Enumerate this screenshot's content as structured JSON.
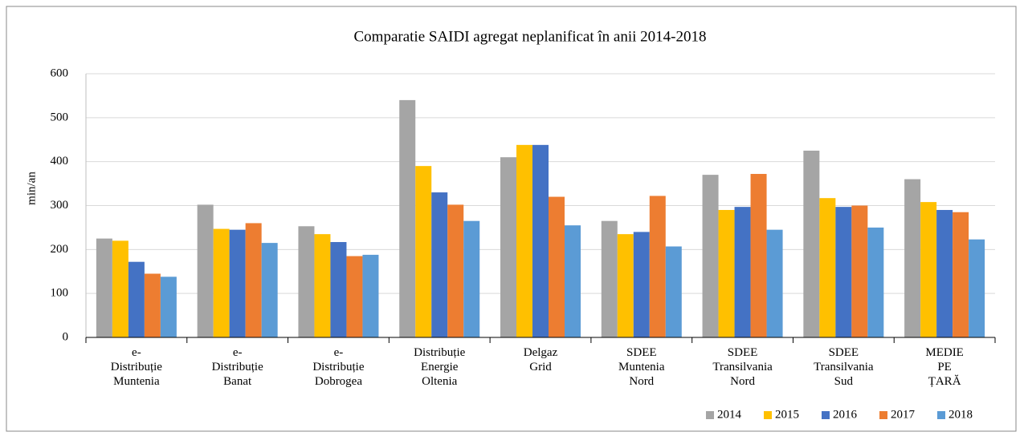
{
  "chart_data": {
    "type": "bar",
    "title": "Comparatie  SAIDI agregat neplanificat în anii 2014-2018",
    "ylabel": "min/an",
    "categories": [
      [
        "e-",
        "Distribuție",
        "Muntenia"
      ],
      [
        "e-",
        "Distribuție",
        "Banat"
      ],
      [
        "e-",
        "Distribuție",
        "Dobrogea"
      ],
      [
        "Distribuție",
        "Energie",
        "Oltenia"
      ],
      [
        "Delgaz",
        "Grid"
      ],
      [
        "SDEE",
        "Muntenia",
        "Nord"
      ],
      [
        "SDEE",
        "Transilvania",
        "Nord"
      ],
      [
        "SDEE",
        "Transilvania",
        "Sud"
      ],
      [
        "MEDIE",
        "PE",
        "ȚARĂ"
      ]
    ],
    "series": [
      {
        "name": "2014",
        "color": "#a5a5a5",
        "values": [
          225,
          302,
          253,
          540,
          410,
          265,
          370,
          425,
          360
        ]
      },
      {
        "name": "2015",
        "color": "#ffc000",
        "values": [
          220,
          247,
          235,
          390,
          438,
          235,
          290,
          317,
          308
        ]
      },
      {
        "name": "2016",
        "color": "#4472c4",
        "values": [
          172,
          245,
          217,
          330,
          438,
          240,
          297,
          297,
          290
        ]
      },
      {
        "name": "2017",
        "color": "#ed7d31",
        "values": [
          145,
          260,
          185,
          302,
          320,
          322,
          372,
          300,
          285
        ]
      },
      {
        "name": "2018",
        "color": "#5b9bd5",
        "values": [
          138,
          215,
          188,
          265,
          255,
          207,
          245,
          250,
          223
        ]
      }
    ],
    "ylim": [
      0,
      600
    ],
    "yticks": [
      0,
      100,
      200,
      300,
      400,
      500,
      600
    ],
    "grid": true,
    "legend": "bottom-right"
  }
}
